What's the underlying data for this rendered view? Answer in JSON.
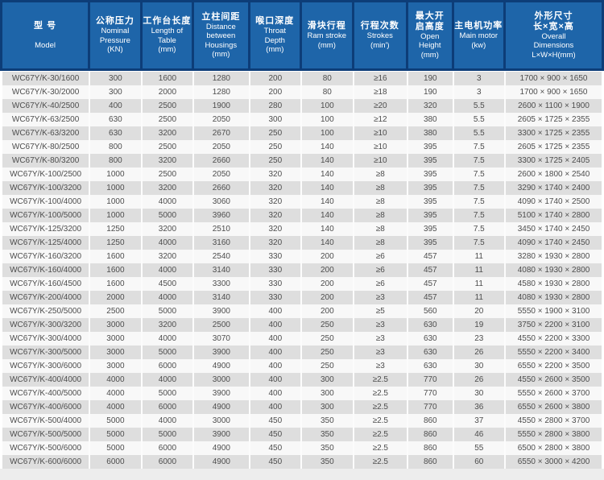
{
  "colors": {
    "header_frame": "#0d3d78",
    "header_cell_bg": "#1e65a9",
    "header_text": "#ffffff",
    "row_stripe": "#dedede",
    "row_plain": "#f8f8f8",
    "body_text": "#4d4d4d"
  },
  "table": {
    "columns": [
      {
        "id": "model",
        "cn": [
          "型 号"
        ],
        "en": [
          "Model"
        ]
      },
      {
        "id": "nominal-pressure",
        "cn": [
          "公称压力"
        ],
        "en": [
          "Nominal",
          "Pressure",
          "(KN)"
        ]
      },
      {
        "id": "table-length",
        "cn": [
          "工作台长度"
        ],
        "en": [
          "Length of",
          "Table",
          "(mm)"
        ]
      },
      {
        "id": "housing-distance",
        "cn": [
          "立柱间距"
        ],
        "en": [
          "Distance",
          "between",
          "Housings",
          "(mm)"
        ]
      },
      {
        "id": "throat-depth",
        "cn": [
          "喉口深度"
        ],
        "en": [
          "Throat",
          "Depth",
          "(mm)"
        ]
      },
      {
        "id": "ram-stroke",
        "cn": [
          "滑块行程"
        ],
        "en": [
          "Ram stroke",
          "(mm)"
        ]
      },
      {
        "id": "strokes",
        "cn": [
          "行程次数"
        ],
        "en": [
          "Strokes",
          "(min')"
        ]
      },
      {
        "id": "open-height",
        "cn": [
          "最大开",
          "启高度"
        ],
        "en": [
          "Open",
          "Height",
          "(mm)"
        ]
      },
      {
        "id": "main-motor",
        "cn": [
          "主电机功率"
        ],
        "en": [
          "Main motor",
          "(kw)"
        ]
      },
      {
        "id": "overall-dimensions",
        "cn": [
          "外形尺寸",
          "长×宽×高"
        ],
        "en": [
          "Overall",
          "Dimensions",
          "L×W×H(mm)"
        ]
      }
    ],
    "rows": [
      [
        "WC67Y/K-30/1600",
        "300",
        "1600",
        "1280",
        "200",
        "80",
        "≥16",
        "190",
        "3",
        "1700 × 900 × 1650"
      ],
      [
        "WC67Y/K-30/2000",
        "300",
        "2000",
        "1280",
        "200",
        "80",
        "≥18",
        "190",
        "3",
        "1700 × 900 × 1650"
      ],
      [
        "WC67Y/K-40/2500",
        "400",
        "2500",
        "1900",
        "280",
        "100",
        "≥20",
        "320",
        "5.5",
        "2600 × 1100 × 1900"
      ],
      [
        "WC67Y/K-63/2500",
        "630",
        "2500",
        "2050",
        "300",
        "100",
        "≥12",
        "380",
        "5.5",
        "2605 × 1725 × 2355"
      ],
      [
        "WC67Y/K-63/3200",
        "630",
        "3200",
        "2670",
        "250",
        "100",
        "≥10",
        "380",
        "5.5",
        "3300 × 1725 × 2355"
      ],
      [
        "WC67Y/K-80/2500",
        "800",
        "2500",
        "2050",
        "250",
        "140",
        "≥10",
        "395",
        "7.5",
        "2605 × 1725 × 2355"
      ],
      [
        "WC67Y/K-80/3200",
        "800",
        "3200",
        "2660",
        "250",
        "140",
        "≥10",
        "395",
        "7.5",
        "3300 × 1725 × 2405"
      ],
      [
        "WC67Y/K-100/2500",
        "1000",
        "2500",
        "2050",
        "320",
        "140",
        "≥8",
        "395",
        "7.5",
        "2600 × 1800 × 2540"
      ],
      [
        "WC67Y/K-100/3200",
        "1000",
        "3200",
        "2660",
        "320",
        "140",
        "≥8",
        "395",
        "7.5",
        "3290 × 1740 × 2400"
      ],
      [
        "WC67Y/K-100/4000",
        "1000",
        "4000",
        "3060",
        "320",
        "140",
        "≥8",
        "395",
        "7.5",
        "4090 × 1740 × 2500"
      ],
      [
        "WC67Y/K-100/5000",
        "1000",
        "5000",
        "3960",
        "320",
        "140",
        "≥8",
        "395",
        "7.5",
        "5100 × 1740 × 2800"
      ],
      [
        "WC67Y/K-125/3200",
        "1250",
        "3200",
        "2510",
        "320",
        "140",
        "≥8",
        "395",
        "7.5",
        "3450 × 1740 × 2450"
      ],
      [
        "WC67Y/K-125/4000",
        "1250",
        "4000",
        "3160",
        "320",
        "140",
        "≥8",
        "395",
        "7.5",
        "4090 × 1740 × 2450"
      ],
      [
        "WC67Y/K-160/3200",
        "1600",
        "3200",
        "2540",
        "330",
        "200",
        "≥6",
        "457",
        "11",
        "3280 × 1930 × 2800"
      ],
      [
        "WC67Y/K-160/4000",
        "1600",
        "4000",
        "3140",
        "330",
        "200",
        "≥6",
        "457",
        "11",
        "4080 × 1930 × 2800"
      ],
      [
        "WC67Y/K-160/4500",
        "1600",
        "4500",
        "3300",
        "330",
        "200",
        "≥6",
        "457",
        "11",
        "4580 × 1930 × 2800"
      ],
      [
        "WC67Y/K-200/4000",
        "2000",
        "4000",
        "3140",
        "330",
        "200",
        "≥3",
        "457",
        "11",
        "4080 × 1930 × 2800"
      ],
      [
        "WC67Y/K-250/5000",
        "2500",
        "5000",
        "3900",
        "400",
        "200",
        "≥5",
        "560",
        "20",
        "5550 × 1900 × 3100"
      ],
      [
        "WC67Y/K-300/3200",
        "3000",
        "3200",
        "2500",
        "400",
        "250",
        "≥3",
        "630",
        "19",
        "3750 × 2200 × 3100"
      ],
      [
        "WC67Y/K-300/4000",
        "3000",
        "4000",
        "3070",
        "400",
        "250",
        "≥3",
        "630",
        "23",
        "4550 × 2200 × 3300"
      ],
      [
        "WC67Y/K-300/5000",
        "3000",
        "5000",
        "3900",
        "400",
        "250",
        "≥3",
        "630",
        "26",
        "5550 × 2200 × 3400"
      ],
      [
        "WC67Y/K-300/6000",
        "3000",
        "6000",
        "4900",
        "400",
        "250",
        "≥3",
        "630",
        "30",
        "6550 × 2200 × 3500"
      ],
      [
        "WC67Y/K-400/4000",
        "4000",
        "4000",
        "3000",
        "400",
        "300",
        "≥2.5",
        "770",
        "26",
        "4550 × 2600 × 3500"
      ],
      [
        "WC67Y/K-400/5000",
        "4000",
        "5000",
        "3900",
        "400",
        "300",
        "≥2.5",
        "770",
        "30",
        "5550 × 2600 × 3700"
      ],
      [
        "WC67Y/K-400/6000",
        "4000",
        "6000",
        "4900",
        "400",
        "300",
        "≥2.5",
        "770",
        "36",
        "6550 × 2600 × 3800"
      ],
      [
        "WC67Y/K-500/4000",
        "5000",
        "4000",
        "3000",
        "450",
        "350",
        "≥2.5",
        "860",
        "37",
        "4550 × 2800 × 3700"
      ],
      [
        "WC67Y/K-500/5000",
        "5000",
        "5000",
        "3900",
        "450",
        "350",
        "≥2.5",
        "860",
        "46",
        "5550 × 2800 × 3800"
      ],
      [
        "WC67Y/K-500/6000",
        "5000",
        "6000",
        "4900",
        "450",
        "350",
        "≥2.5",
        "860",
        "55",
        "6500 × 2800 × 3800"
      ],
      [
        "WC67Y/K-600/6000",
        "6000",
        "6000",
        "4900",
        "450",
        "350",
        "≥2.5",
        "860",
        "60",
        "6550 × 3000 × 4200"
      ]
    ]
  }
}
